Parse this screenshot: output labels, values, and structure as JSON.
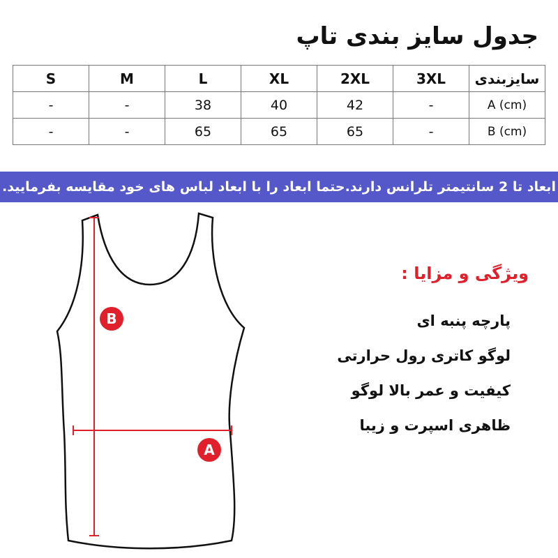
{
  "title": "جدول سایز بندی تاپ",
  "table": {
    "header": [
      "S",
      "M",
      "L",
      "XL",
      "2XL",
      "3XL",
      "سایزبندی"
    ],
    "rows": [
      [
        "-",
        "-",
        "38",
        "40",
        "42",
        "-",
        "A (cm)"
      ],
      [
        "-",
        "-",
        "65",
        "65",
        "65",
        "-",
        "B (cm)"
      ]
    ]
  },
  "banner": "ابعاد تا 2 سانتیمتر تلرانس دارند.حتما ابعاد را با ابعاد لباس های خود مقایسه بفرمایید.",
  "diagram": {
    "label_a": "A",
    "label_b": "B",
    "accent": "#e0202a",
    "banner_color": "#5558c8"
  },
  "features": {
    "title": "ویژگی و مزایا :",
    "items": [
      "پارچه پنبه ای",
      "لوگو کاتری رول حرارتی",
      "کیفیت و عمر بالا لوگو",
      "ظاهری اسپرت و زیبا"
    ]
  }
}
